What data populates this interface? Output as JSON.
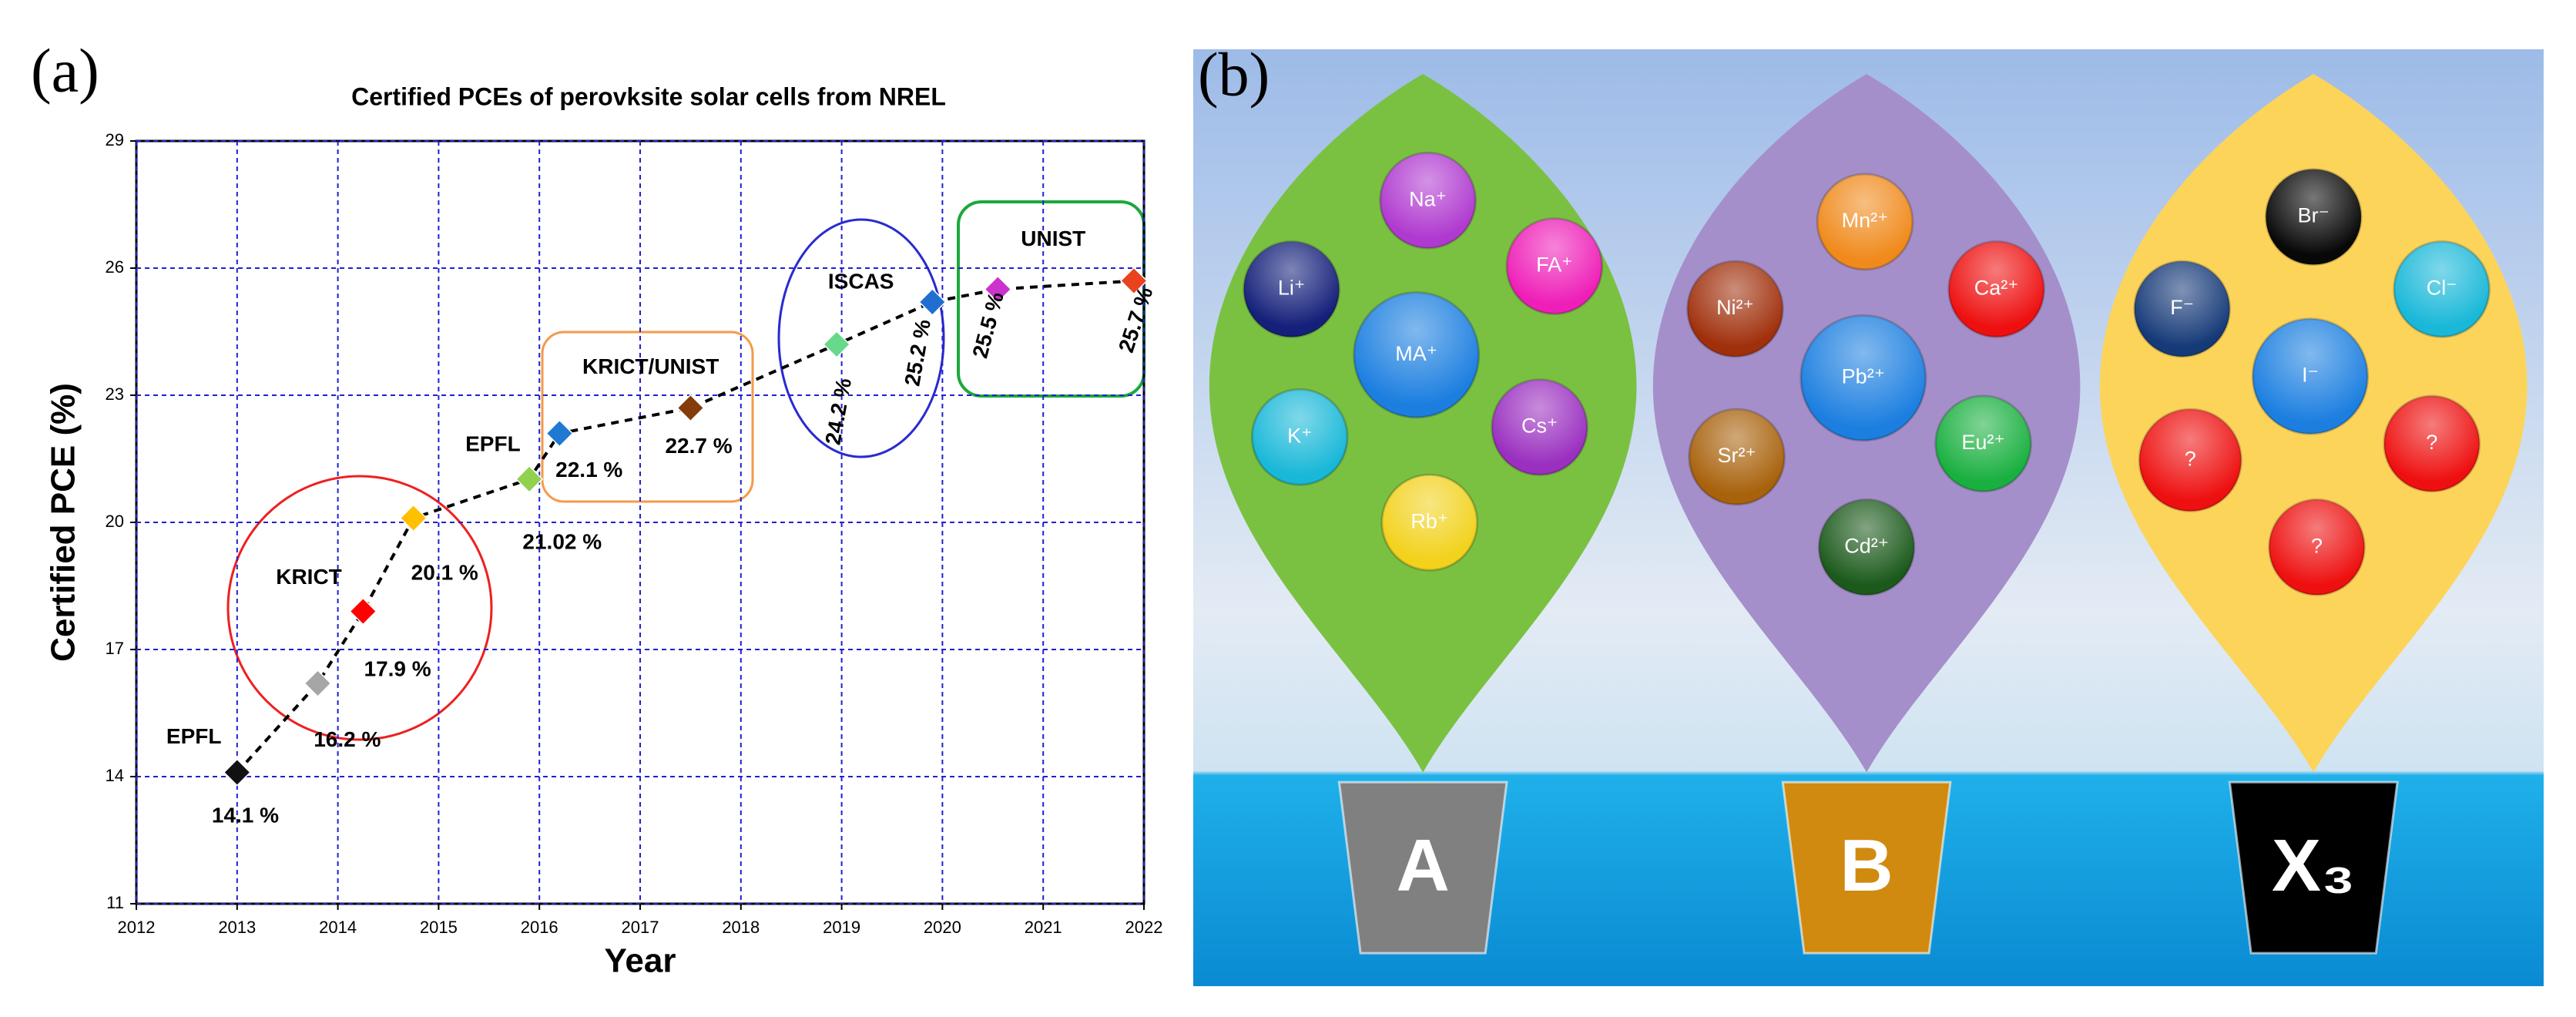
{
  "chart_data": {
    "type": "scatter",
    "panel_label": "(a)",
    "title": "Certified PCEs of perovksite solar cells from NREL",
    "x_label": "Year",
    "y_label": "Certified PCE (%)",
    "x": [
      2013.0,
      2013.8,
      2014.25,
      2014.75,
      2015.9,
      2016.2,
      2017.5,
      2018.95,
      2019.9,
      2020.55,
      2021.9
    ],
    "values": [
      14.1,
      16.2,
      17.9,
      20.1,
      21.02,
      22.1,
      22.7,
      24.2,
      25.2,
      25.5,
      25.7
    ],
    "value_labels": [
      "14.1 %",
      "16.2 %",
      "17.9 %",
      "20.1 %",
      "21.02 %",
      "22.1 %",
      "22.7 %",
      "24.2 %",
      "25.2 %",
      "25.5 %",
      "25.7 %"
    ],
    "colors": [
      "#111111",
      "#a6a6a6",
      "#ff0000",
      "#ffc000",
      "#92d050",
      "#1f78d1",
      "#843c0c",
      "#66d98a",
      "#1f6fd1",
      "#cc33cc",
      "#e8431e"
    ],
    "line_color": "#000000",
    "annotations": [
      "EPFL",
      "KRICT",
      "EPFL",
      "KRICT/UNIST",
      "ISCAS",
      "UNIST"
    ],
    "xlim": [
      2012,
      2022
    ],
    "xticks": [
      2012,
      2013,
      2014,
      2015,
      2016,
      2017,
      2018,
      2019,
      2020,
      2021,
      2022
    ],
    "ylim": [
      11,
      29
    ],
    "yticks": [
      11,
      14,
      17,
      20,
      23,
      26,
      29
    ],
    "grid": true
  },
  "diagram": {
    "panel_label": "(b)",
    "groups": [
      {
        "name": "A",
        "color": "#7ac142",
        "bucket_color": "#808080",
        "ions": [
          {
            "label": "Na⁺",
            "color": "#b03ad0"
          },
          {
            "label": "FA⁺",
            "color": "#ee1fb8"
          },
          {
            "label": "Li⁺",
            "color": "#14207a"
          },
          {
            "label": "MA⁺",
            "color": "#1c7fe0"
          },
          {
            "label": "K⁺",
            "color": "#19b8d8"
          },
          {
            "label": "Cs⁺",
            "color": "#9a2fc0"
          },
          {
            "label": "Rb⁺",
            "color": "#f2d21c"
          }
        ]
      },
      {
        "name": "B",
        "color": "#a58fca",
        "bucket_color": "#d08a10",
        "ions": [
          {
            "label": "Mn²⁺",
            "color": "#f08a1c"
          },
          {
            "label": "Ni²⁺",
            "color": "#a0300c"
          },
          {
            "label": "Ca²⁺",
            "color": "#ee1010"
          },
          {
            "label": "Pb²⁺",
            "color": "#1c7fe0"
          },
          {
            "label": "Sr²⁺",
            "color": "#a8620c"
          },
          {
            "label": "Eu²⁺",
            "color": "#1ab040"
          },
          {
            "label": "Cd²⁺",
            "color": "#1c5a1c"
          }
        ]
      },
      {
        "name": "X₃",
        "color": "#fcd45a",
        "bucket_color": "#000000",
        "ions": [
          {
            "label": "Br⁻",
            "color": "#080808"
          },
          {
            "label": "F⁻",
            "color": "#163a78"
          },
          {
            "label": "Cl⁻",
            "color": "#19b8d8"
          },
          {
            "label": "I⁻",
            "color": "#1c7fe0"
          },
          {
            "label": "?",
            "color": "#ee1010"
          },
          {
            "label": "?",
            "color": "#ee1010"
          },
          {
            "label": "?",
            "color": "#ee1010"
          }
        ]
      }
    ]
  }
}
